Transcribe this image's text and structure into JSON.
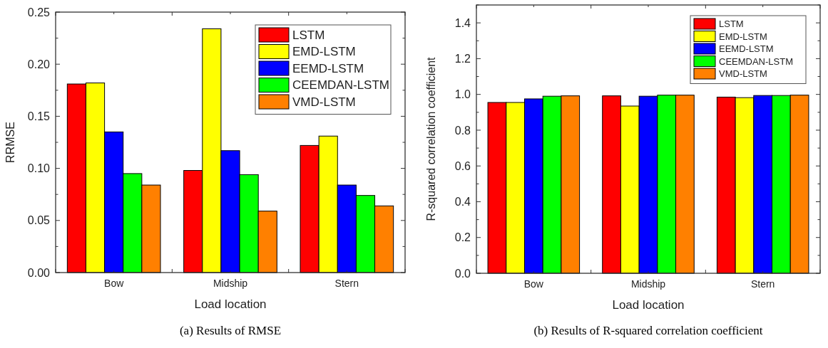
{
  "chart_data": [
    {
      "type": "bar",
      "xlabel": "Load location",
      "ylabel": "RRMSE",
      "categories": [
        "Bow",
        "Midship",
        "Stern"
      ],
      "series": [
        {
          "name": "LSTM",
          "color": "#ff0000",
          "values": [
            0.181,
            0.098,
            0.122
          ]
        },
        {
          "name": "EMD-LSTM",
          "color": "#ffff00",
          "values": [
            0.182,
            0.234,
            0.131
          ]
        },
        {
          "name": "EEMD-LSTM",
          "color": "#0000ff",
          "values": [
            0.135,
            0.117,
            0.084
          ]
        },
        {
          "name": "CEEMDAN-LSTM",
          "color": "#00ff00",
          "values": [
            0.095,
            0.094,
            0.074
          ]
        },
        {
          "name": "VMD-LSTM",
          "color": "#ff8000",
          "values": [
            0.084,
            0.059,
            0.064
          ]
        }
      ],
      "ylim": [
        0,
        0.25
      ],
      "yticks": [
        {
          "value": 0,
          "label": "0.00"
        },
        {
          "value": 0.025,
          "label": null
        },
        {
          "value": 0.05,
          "label": "0.05"
        },
        {
          "value": 0.075,
          "label": null
        },
        {
          "value": 0.1,
          "label": "0.10"
        },
        {
          "value": 0.125,
          "label": null
        },
        {
          "value": 0.15,
          "label": "0.15"
        },
        {
          "value": 0.175,
          "label": null
        },
        {
          "value": 0.2,
          "label": "0.20"
        },
        {
          "value": 0.225,
          "label": null
        },
        {
          "value": 0.25,
          "label": "0.25"
        }
      ],
      "grid": false,
      "legend": "top right",
      "annotations": [
        "(a) Results of RMSE"
      ]
    },
    {
      "type": "bar",
      "xlabel": "Load location",
      "ylabel": "R-squared correlation coefficient",
      "categories": [
        "Bow",
        "Midship",
        "Stern"
      ],
      "series": [
        {
          "name": "LSTM",
          "color": "#ff0000",
          "values": [
            0.955,
            0.992,
            0.985
          ]
        },
        {
          "name": "EMD-LSTM",
          "color": "#ffff00",
          "values": [
            0.955,
            0.935,
            0.982
          ]
        },
        {
          "name": "EEMD-LSTM",
          "color": "#0000ff",
          "values": [
            0.975,
            0.99,
            0.994
          ]
        },
        {
          "name": "CEEMDAN-LSTM",
          "color": "#00ff00",
          "values": [
            0.99,
            0.996,
            0.994
          ]
        },
        {
          "name": "VMD-LSTM",
          "color": "#ff8000",
          "values": [
            0.992,
            0.996,
            0.996
          ]
        }
      ],
      "ylim": [
        0,
        1.5
      ],
      "yticks": [
        {
          "value": 0,
          "label": "0.0"
        },
        {
          "value": 0.1,
          "label": null
        },
        {
          "value": 0.2,
          "label": "0.2"
        },
        {
          "value": 0.3,
          "label": null
        },
        {
          "value": 0.4,
          "label": "0.4"
        },
        {
          "value": 0.5,
          "label": null
        },
        {
          "value": 0.6,
          "label": "0.6"
        },
        {
          "value": 0.7,
          "label": null
        },
        {
          "value": 0.8,
          "label": "0.8"
        },
        {
          "value": 0.9,
          "label": null
        },
        {
          "value": 1.0,
          "label": "1.0"
        },
        {
          "value": 1.1,
          "label": null
        },
        {
          "value": 1.2,
          "label": "1.2"
        },
        {
          "value": 1.3,
          "label": null
        },
        {
          "value": 1.4,
          "label": "1.4"
        },
        {
          "value": 1.5,
          "label": null
        }
      ],
      "grid": false,
      "legend": "top right",
      "annotations": [
        "(b) Results of R-squared correlation coefficient"
      ]
    }
  ]
}
